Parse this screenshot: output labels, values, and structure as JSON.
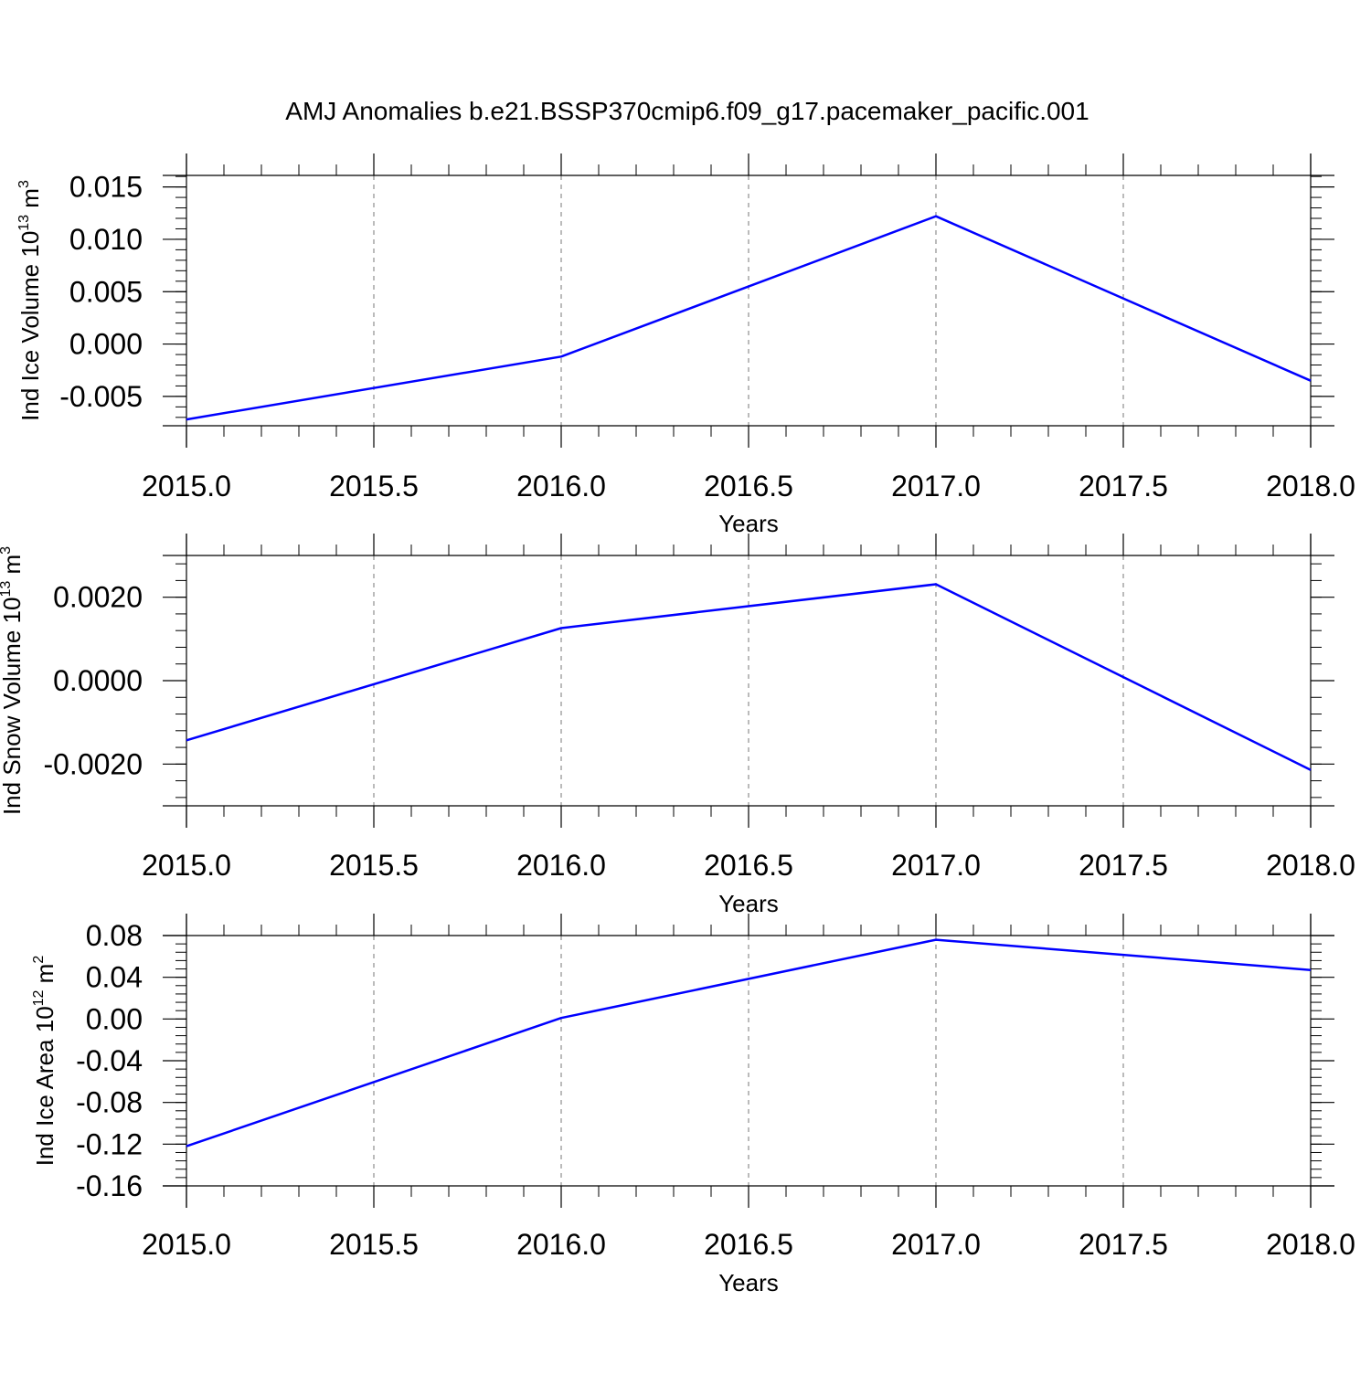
{
  "title": "AMJ Anomalies b.e21.BSSP370cmip6.f09_g17.pacemaker_pacific.001",
  "colors": {
    "line": "#0000ff",
    "axis": "#000000",
    "grid": "#777777",
    "background": "#ffffff"
  },
  "chart_data": [
    {
      "type": "line",
      "xlabel": "Years",
      "ylabel": {
        "prefix": "Ind Ice Volume 10",
        "exp1": "13",
        "mid": " m",
        "exp2": "3"
      },
      "xlim": [
        2015.0,
        2018.0
      ],
      "ylim": [
        -0.0078,
        0.0161
      ],
      "x_ticks": [
        "2015.0",
        "2015.5",
        "2016.0",
        "2016.5",
        "2017.0",
        "2017.5",
        "2018.0"
      ],
      "y_ticks": [
        -0.005,
        0.0,
        0.005,
        0.01,
        0.015
      ],
      "y_tick_labels": [
        "-0.005",
        "0.000",
        "0.005",
        "0.010",
        "0.015"
      ],
      "grid": "vertical dashed at major x ticks",
      "series": [
        {
          "x": [
            2015.0,
            2016.0,
            2017.0,
            2018.0
          ],
          "y": [
            -0.0072,
            -0.0012,
            0.0122,
            -0.0035
          ]
        }
      ]
    },
    {
      "type": "line",
      "xlabel": "Years",
      "ylabel": {
        "prefix": "Ind Snow Volume 10",
        "exp1": "13",
        "mid": " m",
        "exp2": "3"
      },
      "xlim": [
        2015.0,
        2018.0
      ],
      "ylim": [
        -0.003,
        0.003
      ],
      "x_ticks": [
        "2015.0",
        "2015.5",
        "2016.0",
        "2016.5",
        "2017.0",
        "2017.5",
        "2018.0"
      ],
      "y_ticks": [
        -0.002,
        0.0,
        0.002
      ],
      "y_tick_labels": [
        "-0.0020",
        "0.0000",
        "0.0020"
      ],
      "grid": "vertical dashed at major x ticks",
      "series": [
        {
          "x": [
            2015.0,
            2016.0,
            2017.0,
            2018.0
          ],
          "y": [
            -0.00143,
            0.00126,
            0.00231,
            -0.00214
          ]
        }
      ]
    },
    {
      "type": "line",
      "xlabel": "Years",
      "ylabel": {
        "prefix": "Ind Ice Area 10",
        "exp1": "12",
        "mid": " m",
        "exp2": "2"
      },
      "xlim": [
        2015.0,
        2018.0
      ],
      "ylim": [
        -0.16,
        0.08
      ],
      "x_ticks": [
        "2015.0",
        "2015.5",
        "2016.0",
        "2016.5",
        "2017.0",
        "2017.5",
        "2018.0"
      ],
      "y_ticks": [
        -0.16,
        -0.12,
        -0.08,
        -0.04,
        0.0,
        0.04,
        0.08
      ],
      "y_tick_labels": [
        "-0.16",
        "-0.12",
        "-0.08",
        "-0.04",
        "0.00",
        "0.04",
        "0.08"
      ],
      "grid": "vertical dashed at major x ticks",
      "series": [
        {
          "x": [
            2015.0,
            2016.0,
            2017.0,
            2018.0
          ],
          "y": [
            -0.122,
            0.001,
            0.076,
            0.047
          ]
        }
      ]
    }
  ]
}
